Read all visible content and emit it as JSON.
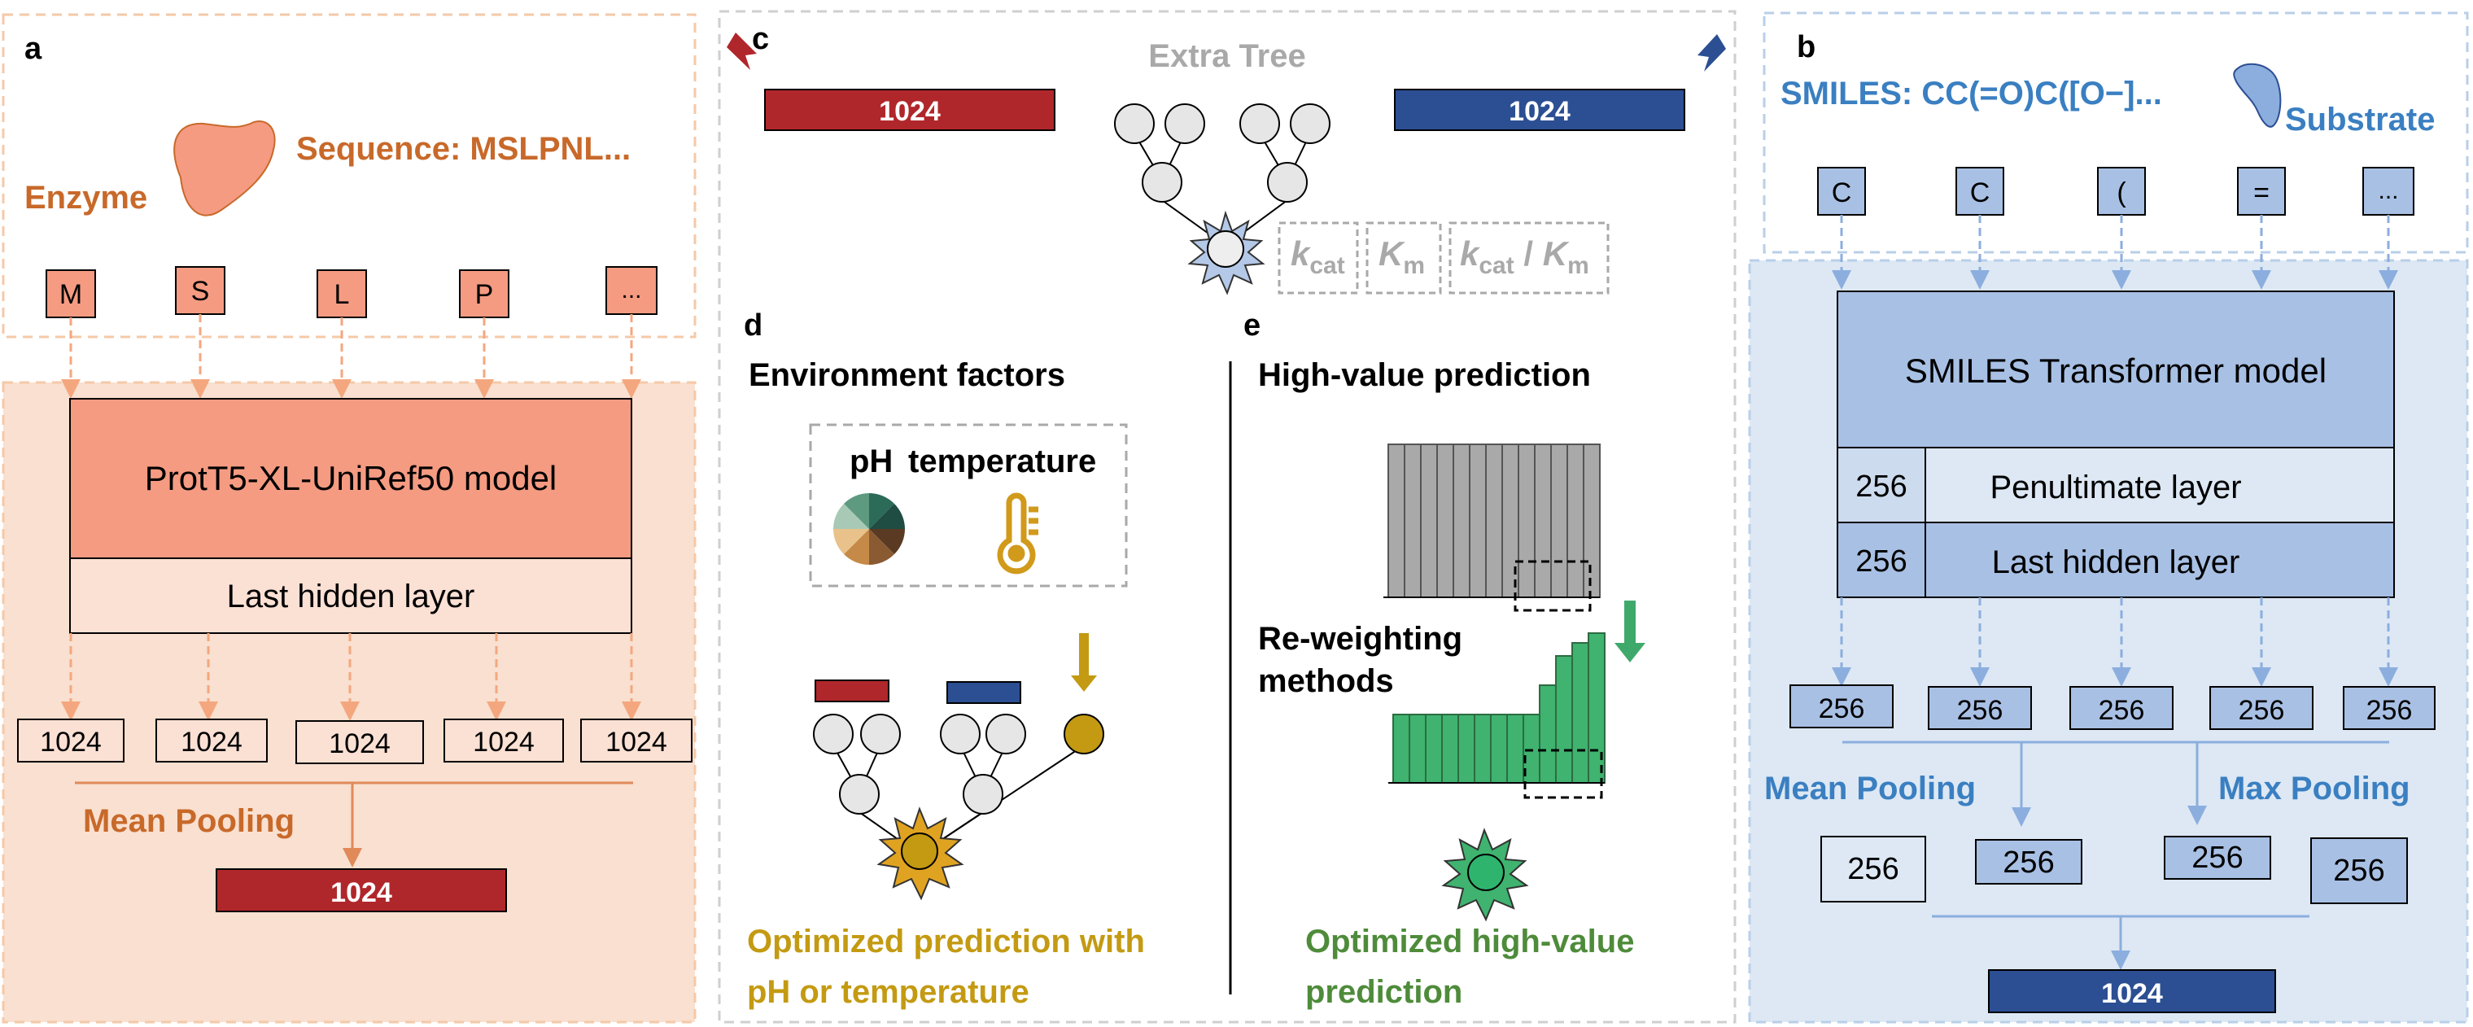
{
  "colors": {
    "enzyme_orange": "#c8692a",
    "enzyme_fill": "#f59b82",
    "enzyme_panel_bg": "#f9e0d0",
    "enzyme_layer_bg": "#fbe0d4",
    "dark_red": "#b0272b",
    "dark_blue": "#2c4f93",
    "smiles_blue": "#3a7fc1",
    "smiles_panel_bg": "#dde8f4",
    "smiles_box": "#a8c0e4",
    "smiles_box_light": "#cddbee",
    "gold": "#c39a12",
    "green": "#3fa96b",
    "green_text": "#4e8b3a",
    "gray": "#a9a9a9"
  },
  "panel_a": {
    "label": "a",
    "enzyme_label": "Enzyme",
    "sequence_label": "Sequence: MSLPNL...",
    "tokens": [
      "M",
      "S",
      "L",
      "P",
      "..."
    ],
    "model_label": "ProtT5-XL-UniRef50 model",
    "last_hidden_label": "Last hidden layer",
    "outputs": [
      "1024",
      "1024",
      "1024",
      "1024",
      "1024"
    ],
    "pooling_label": "Mean Pooling",
    "final_vector": "1024"
  },
  "panel_b": {
    "label": "b",
    "smiles_label": "SMILES: CC(=O)C([O−]...",
    "substrate_label": "Substrate",
    "tokens": [
      "C",
      "C",
      "(",
      "=",
      "..."
    ],
    "model_label": "SMILES Transformer model",
    "penultimate_dim": "256",
    "penultimate_label": "Penultimate layer",
    "last_hidden_dim": "256",
    "last_hidden_label": "Last hidden layer",
    "outputs": [
      "256",
      "256",
      "256",
      "256",
      "256"
    ],
    "mean_pooling_label": "Mean Pooling",
    "max_pooling_label": "Max Pooling",
    "pooled": [
      "256",
      "256",
      "256",
      "256"
    ],
    "final_vector": "1024"
  },
  "panel_c": {
    "label": "c",
    "title": "Extra Tree",
    "left_vector": "1024",
    "right_vector": "1024",
    "targets": {
      "kcat_main": "k",
      "kcat_sub": "cat",
      "km_main": "K",
      "km_sub": "m",
      "sep": " / "
    }
  },
  "panel_d": {
    "label": "d",
    "title": "Environment factors",
    "ph_label": "pH",
    "temperature_label": "temperature",
    "caption_line1": "Optimized prediction with",
    "caption_line2": "pH or temperature"
  },
  "panel_e": {
    "label": "e",
    "title": "High-value prediction",
    "reweight_line1": "Re-weighting",
    "reweight_line2": "methods",
    "caption_line1": "Optimized high-value",
    "caption_line2": "prediction"
  }
}
